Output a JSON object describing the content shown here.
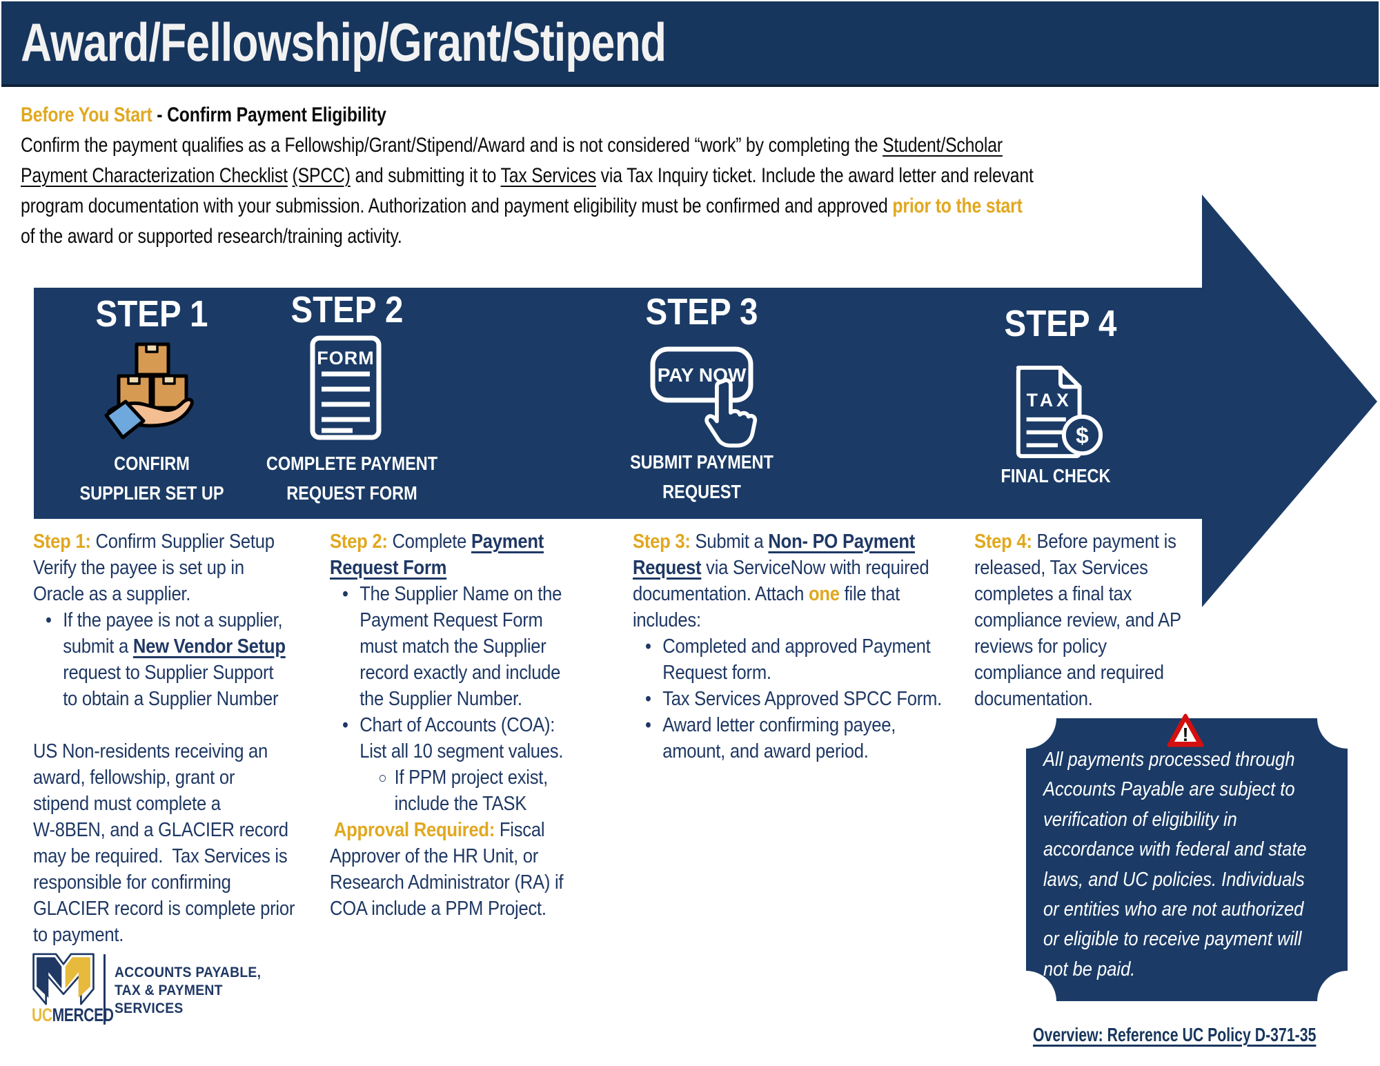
{
  "colors": {
    "navy": "#17365D",
    "bannerNavy": "#1B3B66",
    "gold": "#E1A81F",
    "textNavy": "#1F3864",
    "boxTan": "#D79A53",
    "skin": "#F4BE93",
    "sleeve": "#6FA8DC",
    "red": "#D40F0F",
    "logoGold": "#E7B93C"
  },
  "header": {
    "title": "Award/Fellowship/Grant/Stipend"
  },
  "intro": {
    "heading": [
      {
        "t": "Before You Start",
        "st": "g"
      },
      {
        "t": " - Confirm Payment Eligibility",
        "st": "b"
      }
    ],
    "lines": [
      {
        "segs": [
          {
            "t": "Confirm the payment qualifies as a Fellowship/Grant/Stipend/Award and is not considered “work” by completing the "
          },
          {
            "t": "Student/Scholar",
            "st": "u",
            "link": "student-scholar-checklist-link"
          }
        ]
      },
      {
        "segs": [
          {
            "t": "Payment Characterization Checklist",
            "st": "u",
            "link": "student-scholar-checklist-link"
          },
          {
            "t": " "
          },
          {
            "t": "(SPCC)",
            "st": "u",
            "link": "spcc-link"
          },
          {
            "t": " and submitting it to "
          },
          {
            "t": "Tax Services",
            "st": "u",
            "link": "tax-services-link"
          },
          {
            "t": " via Tax Inquiry ticket. Include the award letter and relevant"
          }
        ]
      },
      {
        "segs": [
          {
            "t": "program documentation with your submission. Authorization and payment eligibility must be confirmed and approved "
          },
          {
            "t": "prior to the start",
            "st": "g"
          }
        ]
      },
      {
        "segs": [
          {
            "t": "of the award or supported research/training activity."
          }
        ]
      }
    ]
  },
  "banner": {
    "steps": [
      {
        "heading": "STEP 1",
        "icon": "hand-boxes-icon",
        "label_lines": [
          "CONFIRM",
          "SUPPLIER SET UP"
        ]
      },
      {
        "heading": "STEP 2",
        "icon": "form-document-icon",
        "icon_text": "FORM",
        "label_lines": [
          "COMPLETE PAYMENT",
          "REQUEST FORM"
        ]
      },
      {
        "heading": "STEP 3",
        "icon": "pay-now-button-icon",
        "icon_text": "PAY NOW",
        "label_lines": [
          "SUBMIT PAYMENT",
          "REQUEST"
        ]
      },
      {
        "heading": "STEP 4",
        "icon": "tax-document-icon",
        "icon_text": "TAX",
        "currency": "$",
        "label_lines": [
          "FINAL CHECK"
        ]
      }
    ]
  },
  "columns": [
    {
      "name": "step-1-description",
      "lines": [
        {
          "segs": [
            {
              "t": "Step 1:",
              "st": "g"
            },
            {
              "t": " Confirm Supplier Setup"
            }
          ]
        },
        {
          "segs": [
            {
              "t": "Verify the payee is set up in"
            }
          ]
        },
        {
          "segs": [
            {
              "t": "Oracle as a supplier."
            }
          ]
        },
        {
          "ind": 1,
          "bullet": "•",
          "segs": [
            {
              "t": "If the payee is not a supplier,"
            }
          ]
        },
        {
          "ind": 1,
          "segs": [
            {
              "t": "submit a "
            },
            {
              "t": "New Vendor Setup",
              "st": "bu",
              "link": "new-vendor-setup-link"
            }
          ]
        },
        {
          "ind": 1,
          "segs": [
            {
              "t": "request to Supplier Support"
            }
          ]
        },
        {
          "ind": 1,
          "segs": [
            {
              "t": "to obtain a Supplier Number"
            }
          ]
        },
        {
          "blank": true
        },
        {
          "segs": [
            {
              "t": "US Non-residents receiving an"
            }
          ]
        },
        {
          "segs": [
            {
              "t": "award, fellowship, grant or"
            }
          ]
        },
        {
          "segs": [
            {
              "t": "stipend must complete a"
            }
          ]
        },
        {
          "segs": [
            {
              "t": "W-8BEN, and a GLACIER record"
            }
          ]
        },
        {
          "segs": [
            {
              "t": "may be required.  Tax Services is"
            }
          ]
        },
        {
          "segs": [
            {
              "t": "responsible for confirming"
            }
          ]
        },
        {
          "segs": [
            {
              "t": "GLACIER record is complete prior"
            }
          ]
        },
        {
          "segs": [
            {
              "t": "to payment."
            }
          ]
        }
      ]
    },
    {
      "name": "step-2-description",
      "lines": [
        {
          "segs": [
            {
              "t": "Step 2:",
              "st": "g"
            },
            {
              "t": " Complete "
            },
            {
              "t": "Payment",
              "st": "bu",
              "link": "payment-request-form-link"
            }
          ]
        },
        {
          "segs": [
            {
              "t": "Request Form",
              "st": "bu",
              "link": "payment-request-form-link"
            }
          ]
        },
        {
          "ind": 1,
          "bullet": "•",
          "segs": [
            {
              "t": "The Supplier Name on the"
            }
          ]
        },
        {
          "ind": 1,
          "segs": [
            {
              "t": "Payment Request Form"
            }
          ]
        },
        {
          "ind": 1,
          "segs": [
            {
              "t": "must match the Supplier"
            }
          ]
        },
        {
          "ind": 1,
          "segs": [
            {
              "t": "record exactly and include"
            }
          ]
        },
        {
          "ind": 1,
          "segs": [
            {
              "t": "the Supplier Number."
            }
          ]
        },
        {
          "ind": 1,
          "bullet": "•",
          "segs": [
            {
              "t": "Chart of Accounts (COA):"
            }
          ]
        },
        {
          "ind": 1,
          "segs": [
            {
              "t": "List all 10 segment values."
            }
          ]
        },
        {
          "ind": 2,
          "bullet": "○",
          "segs": [
            {
              "t": "If PPM project exist,"
            }
          ]
        },
        {
          "ind": 2,
          "segs": [
            {
              "t": "include the TASK"
            }
          ]
        },
        {
          "segs": [
            {
              "t": " Approval Required:",
              "st": "g"
            },
            {
              "t": " Fiscal"
            }
          ]
        },
        {
          "segs": [
            {
              "t": "Approver of the HR Unit, or"
            }
          ]
        },
        {
          "segs": [
            {
              "t": "Research Administrator (RA) if"
            }
          ]
        },
        {
          "segs": [
            {
              "t": "COA include a PPM Project."
            }
          ]
        }
      ]
    },
    {
      "name": "step-3-description",
      "lines": [
        {
          "segs": [
            {
              "t": "Step 3:",
              "st": "g"
            },
            {
              "t": " Submit a "
            },
            {
              "t": "Non- PO Payment",
              "st": "bu",
              "link": "non-po-payment-request-link"
            }
          ]
        },
        {
          "segs": [
            {
              "t": "Request",
              "st": "bu",
              "link": "non-po-payment-request-link"
            },
            {
              "t": " via ServiceNow with required"
            }
          ]
        },
        {
          "segs": [
            {
              "t": "documentation. Attach "
            },
            {
              "t": "one",
              "st": "g"
            },
            {
              "t": " file that"
            }
          ]
        },
        {
          "segs": [
            {
              "t": "includes:"
            }
          ]
        },
        {
          "ind": 1,
          "bullet": "•",
          "segs": [
            {
              "t": "Completed and approved Payment"
            }
          ]
        },
        {
          "ind": 1,
          "segs": [
            {
              "t": "Request form."
            }
          ]
        },
        {
          "ind": 1,
          "bullet": "•",
          "segs": [
            {
              "t": "Tax Services Approved SPCC Form."
            }
          ]
        },
        {
          "ind": 1,
          "bullet": "•",
          "segs": [
            {
              "t": "Award letter confirming payee,"
            }
          ]
        },
        {
          "ind": 1,
          "segs": [
            {
              "t": "amount, and award period."
            }
          ]
        }
      ]
    },
    {
      "name": "step-4-description",
      "lines": [
        {
          "segs": [
            {
              "t": "Step 4:",
              "st": "g"
            },
            {
              "t": " Before payment is"
            }
          ]
        },
        {
          "segs": [
            {
              "t": "released, Tax Services"
            }
          ]
        },
        {
          "segs": [
            {
              "t": "completes a final tax"
            }
          ]
        },
        {
          "segs": [
            {
              "t": "compliance review, and AP"
            }
          ]
        },
        {
          "segs": [
            {
              "t": "reviews for policy"
            }
          ]
        },
        {
          "segs": [
            {
              "t": "compliance and required"
            }
          ]
        },
        {
          "segs": [
            {
              "t": "documentation."
            }
          ]
        }
      ]
    }
  ],
  "callout": {
    "icon": "warning-icon",
    "lines": [
      "All payments processed through",
      "Accounts Payable are subject to",
      "verification of eligibility in",
      "accordance with federal and state",
      "laws, and UC policies. Individuals",
      "or entities who are not authorized",
      "or eligible to receive payment will",
      "not be paid."
    ]
  },
  "footer": {
    "link_text": "Overview: Reference UC Policy D-371-35"
  },
  "logo": {
    "uc": "UC",
    "merced": "MERCED",
    "dept_lines": [
      "ACCOUNTS PAYABLE,",
      "TAX & PAYMENT",
      "SERVICES"
    ]
  }
}
